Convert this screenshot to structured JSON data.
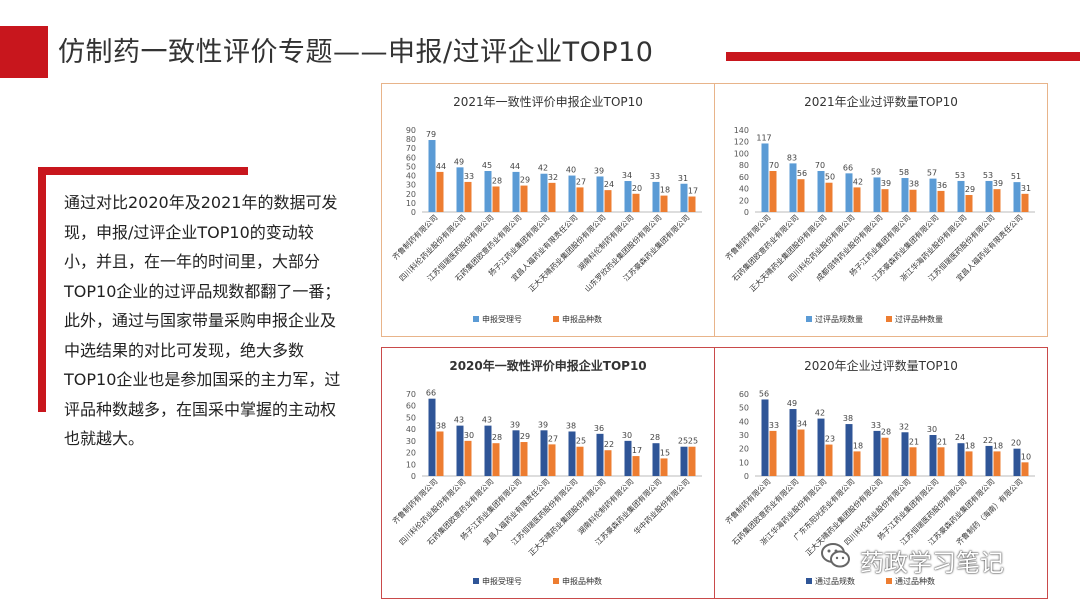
{
  "header": {
    "title": "仿制药一致性评价专题——申报/过评企业TOP10"
  },
  "body_text": "通过对比2020年及2021年的数据可发现，申报/过评企业TOP10的变动较小，并且，在一年的时间里，大部分TOP10企业的过评品规数都翻了一番；此外，通过与国家带量采购申报企业及中选结果的对比可发现，绝大多数TOP10企业也是参加国采的主力军，过评品种数越多，在国采中掌握的主动权也就越大。",
  "watermark": {
    "text": "药政学习笔记",
    "icon": "wechat-icon"
  },
  "colors": {
    "accent_red": "#c8161d",
    "light_blue": "#5b9bd5",
    "dark_blue": "#2f5597",
    "orange": "#ed7d31"
  },
  "chart_data": [
    {
      "type": "bar",
      "title": "2021年一致性评价申报企业TOP10",
      "categories": [
        "齐鲁制药有限公司",
        "四川科伦药业股份有限公司",
        "江苏恒瑞医药股份有限公司",
        "石药集团欧意药业有限公司",
        "扬子江药业集团有限公司",
        "宜昌人福药业有限责任公司",
        "正大天晴药业集团股份有限公司",
        "湖南科伦制药有限公司",
        "山东罗欣药业集团股份有限公司",
        "江苏豪森药业集团有限公司"
      ],
      "series": [
        {
          "name": "申报受理号",
          "values": [
            79,
            49,
            45,
            44,
            42,
            40,
            39,
            34,
            33,
            31
          ]
        },
        {
          "name": "申报品种数",
          "values": [
            44,
            33,
            28,
            29,
            32,
            27,
            24,
            20,
            18,
            17
          ]
        }
      ],
      "ylim": [
        0,
        90
      ],
      "yticks": [
        0,
        10,
        20,
        30,
        40,
        50,
        60,
        70,
        80,
        90
      ],
      "colors": [
        "#5b9bd5",
        "#ed7d31"
      ]
    },
    {
      "type": "bar",
      "title": "2021年企业过评数量TOP10",
      "categories": [
        "齐鲁制药有限公司",
        "石药集团欧意药业有限公司",
        "正大天晴药业集团股份有限公司",
        "四川科伦药业股份有限公司",
        "成都倍特药业股份有限公司",
        "扬子江药业集团有限公司",
        "江苏豪森药业集团有限公司",
        "浙江华海药业股份有限公司",
        "江苏恒瑞医药股份有限公司",
        "宜昌人福药业有限责任公司"
      ],
      "series": [
        {
          "name": "过评品规数量",
          "values": [
            117,
            83,
            70,
            66,
            59,
            58,
            57,
            53,
            53,
            51
          ]
        },
        {
          "name": "过评品种数量",
          "values": [
            70,
            56,
            50,
            42,
            39,
            38,
            36,
            29,
            39,
            31
          ]
        }
      ],
      "ylim": [
        0,
        140
      ],
      "yticks": [
        0,
        20,
        40,
        60,
        80,
        100,
        120,
        140
      ],
      "colors": [
        "#5b9bd5",
        "#ed7d31"
      ]
    },
    {
      "type": "bar",
      "title": "2020年一致性评价申报企业TOP10",
      "categories": [
        "齐鲁制药有限公司",
        "四川科伦药业股份有限公司",
        "石药集团欧意药业有限公司",
        "扬子江药业集团有限公司",
        "宜昌人福药业有限责任公司",
        "江苏恒瑞医药股份有限公司",
        "正大天晴药业集团股份有限公司",
        "湖南科伦制药有限公司",
        "江苏豪森药业集团有限公司",
        "华中药业股份有限公司"
      ],
      "series": [
        {
          "name": "申报受理号",
          "values": [
            66,
            43,
            43,
            39,
            39,
            38,
            36,
            30,
            28,
            25
          ]
        },
        {
          "name": "申报品种数",
          "values": [
            38,
            30,
            28,
            29,
            27,
            25,
            22,
            17,
            15,
            25
          ]
        }
      ],
      "ylim": [
        0,
        70
      ],
      "yticks": [
        0,
        10,
        20,
        30,
        40,
        50,
        60,
        70
      ],
      "colors": [
        "#2f5597",
        "#ed7d31"
      ]
    },
    {
      "type": "bar",
      "title": "2020年企业过评数量TOP10",
      "categories": [
        "齐鲁制药有限公司",
        "石药集团欧意药业有限公司",
        "浙江华海药业股份有限公司",
        "广东东阳光药业有限公司",
        "正大天晴药业集团股份有限公司",
        "四川科伦药业股份有限公司",
        "扬子江药业集团有限公司",
        "江苏恒瑞医药股份有限公司",
        "江苏豪森药业集团有限公司",
        "齐鲁制药（海南）有限公司"
      ],
      "series": [
        {
          "name": "通过品规数",
          "values": [
            56,
            49,
            42,
            38,
            33,
            32,
            30,
            24,
            22,
            20
          ]
        },
        {
          "name": "通过品种数",
          "values": [
            33,
            34,
            23,
            18,
            28,
            21,
            21,
            18,
            18,
            10
          ]
        }
      ],
      "ylim": [
        0,
        60
      ],
      "yticks": [
        0,
        10,
        20,
        30,
        40,
        50,
        60
      ],
      "colors": [
        "#2f5597",
        "#ed7d31"
      ]
    }
  ]
}
